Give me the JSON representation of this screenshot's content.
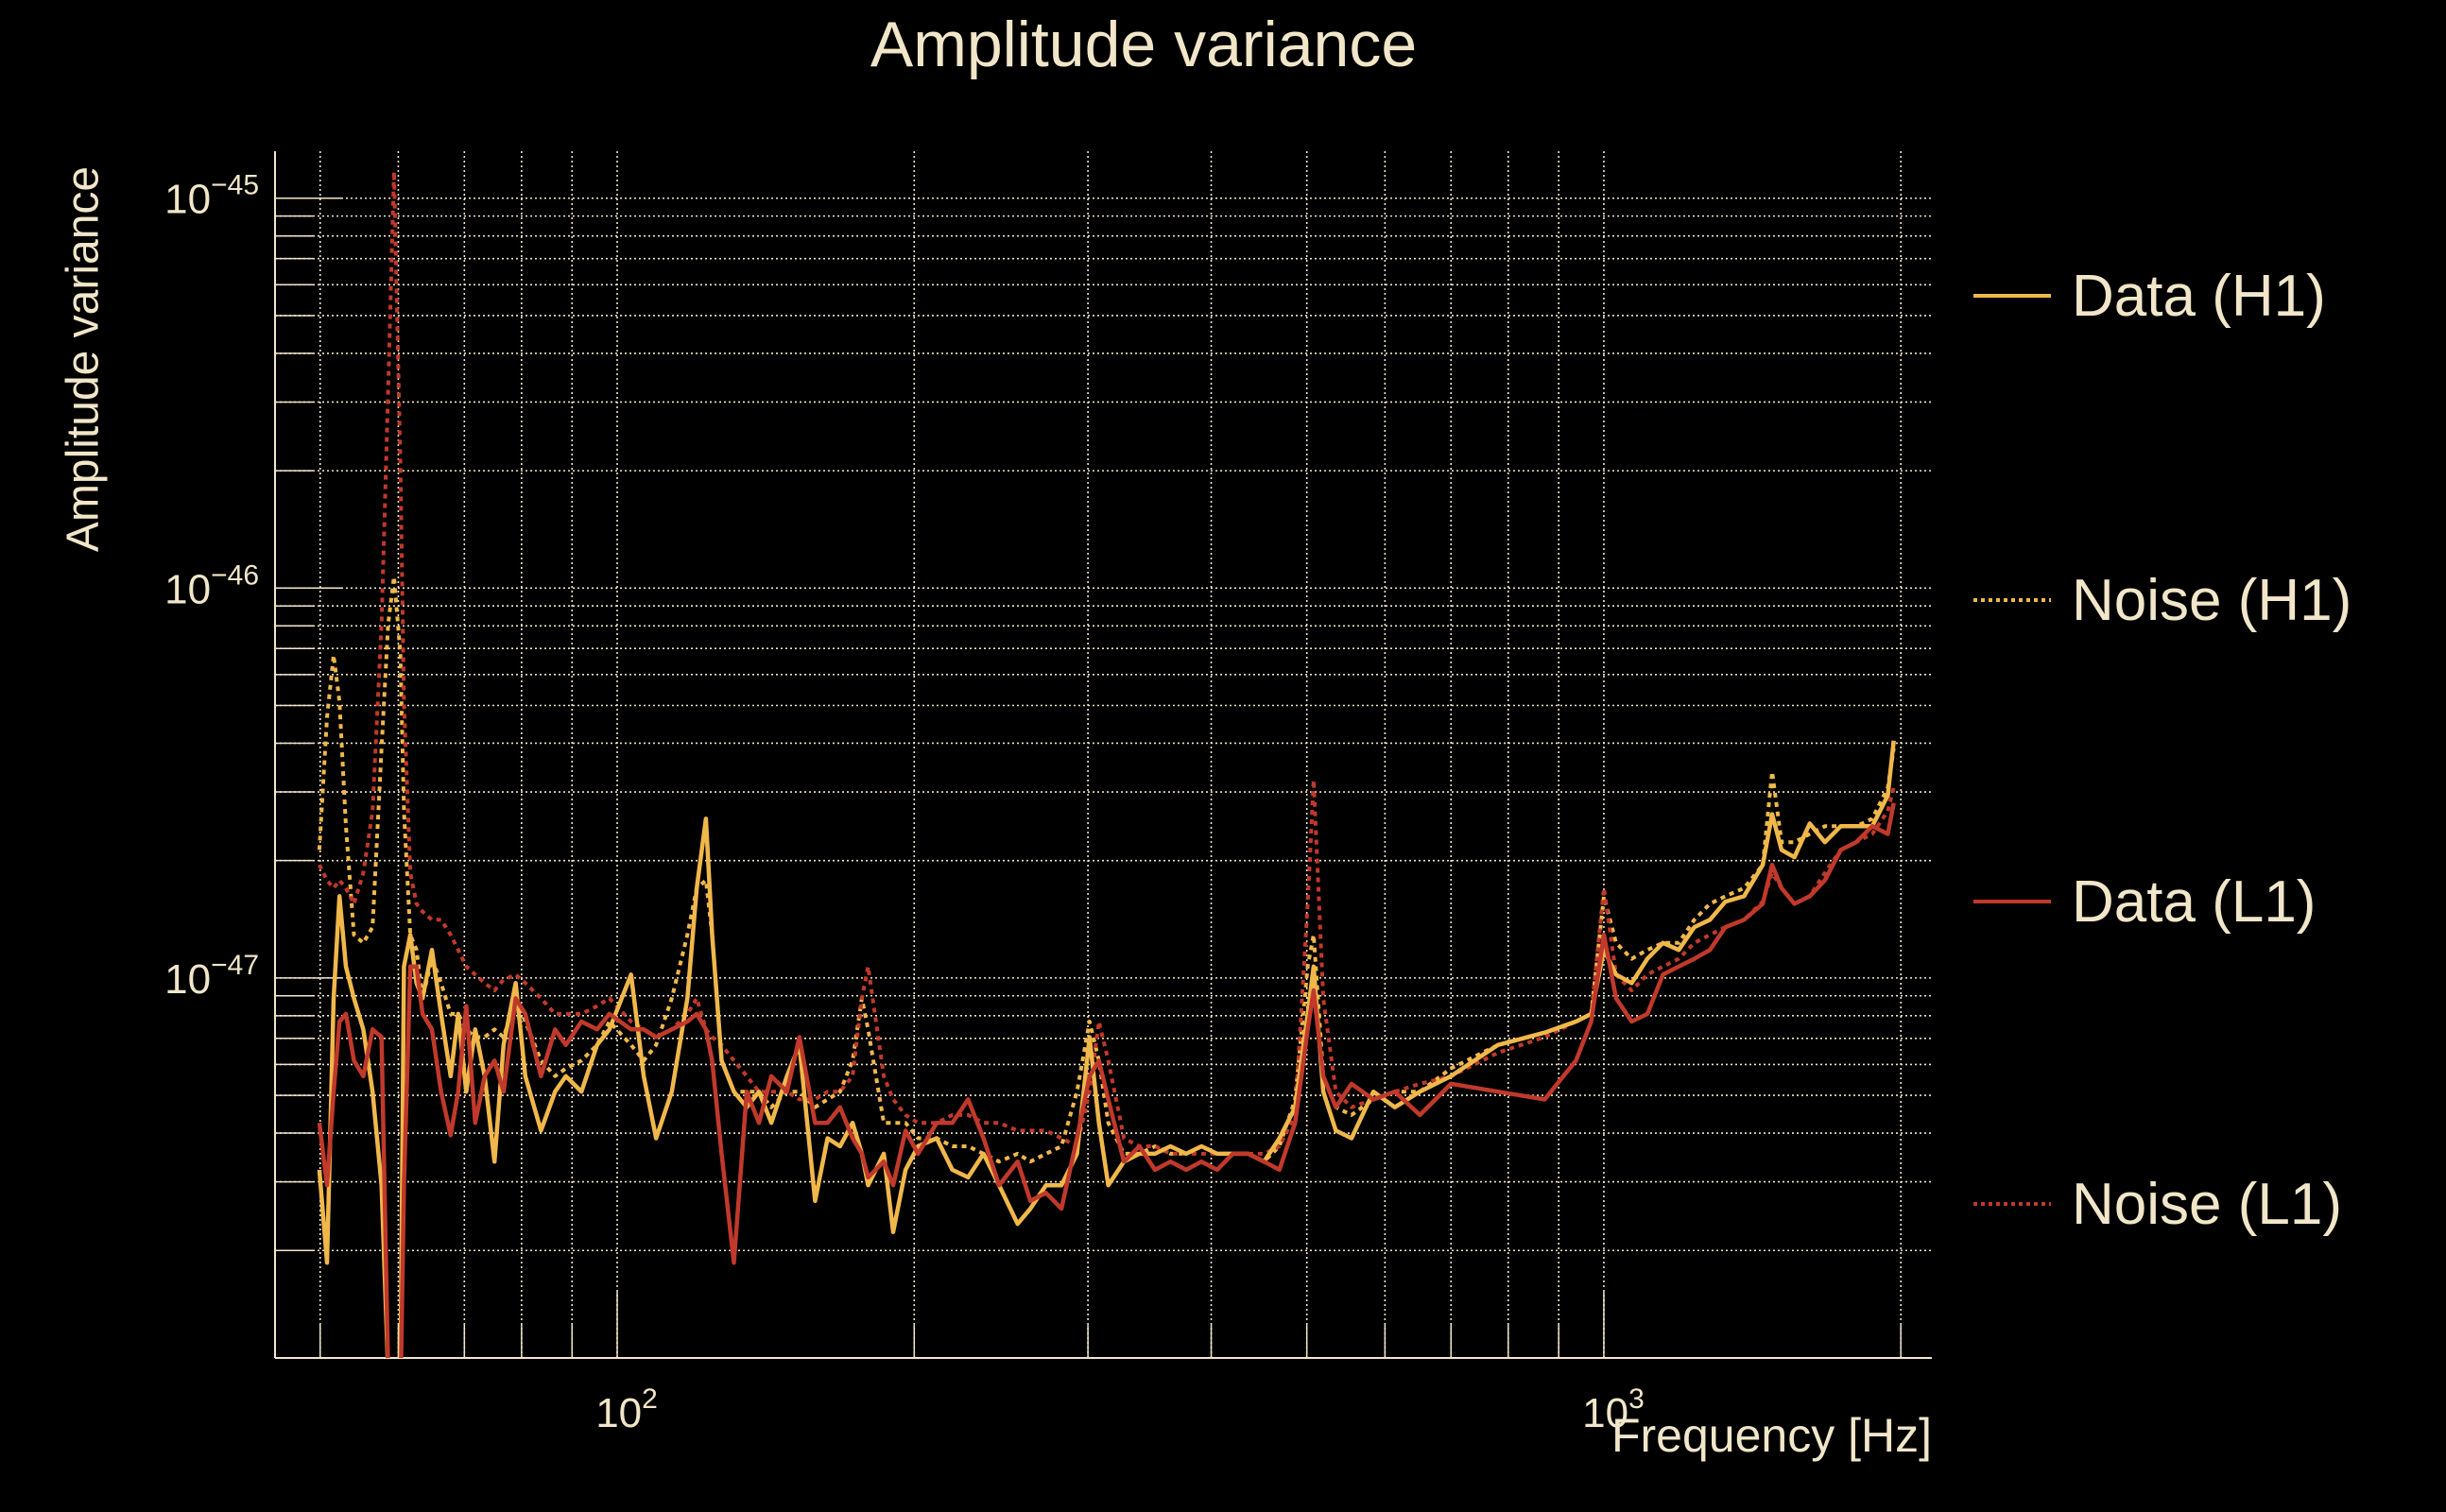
{
  "chart_data": {
    "type": "line",
    "title": "Amplitude variance",
    "xlabel": "Frequency [Hz]",
    "ylabel": "Amplitude variance",
    "xscale": "log",
    "yscale": "log",
    "xlim": [
      45,
      2150
    ],
    "ylim": [
      1.06e-48,
      1.32e-45
    ],
    "grid": true,
    "legend_position": "right",
    "x_ticks": [
      {
        "value": 100,
        "base": "10",
        "exp": "2"
      },
      {
        "value": 1000,
        "base": "10",
        "exp": "3"
      }
    ],
    "y_ticks": [
      {
        "value": 1e-45,
        "base": "10",
        "exp": "−45"
      },
      {
        "value": 1e-46,
        "base": "10",
        "exp": "−46"
      },
      {
        "value": 1e-47,
        "base": "10",
        "exp": "−47"
      }
    ],
    "x": [
      49.9,
      50.8,
      51.6,
      52.3,
      53.1,
      54.1,
      55.3,
      56.5,
      57.7,
      58.6,
      59.4,
      60.3,
      60.8,
      61.7,
      62.6,
      63.5,
      64.9,
      66.3,
      67.8,
      69.0,
      70.3,
      71.8,
      73.4,
      75.1,
      76.7,
      78.9,
      80.7,
      83.7,
      86.5,
      88.7,
      92.0,
      95.4,
      98.2,
      103.3,
      106.4,
      109.5,
      113.6,
      117.8,
      120.4,
      123.0,
      124.8,
      127.6,
      131.3,
      135.3,
      139.2,
      143.3,
      148.6,
      153.0,
      158.7,
      163.4,
      168.2,
      173.2,
      177.0,
      179.6,
      186.3,
      190.4,
      196.0,
      201.8,
      210.8,
      218.6,
      226.8,
      235.1,
      243.8,
      254.6,
      262.3,
      272.0,
      282.0,
      292.4,
      301.1,
      307.8,
      314.6,
      326.3,
      338.3,
      350.8,
      363.7,
      377.3,
      391.0,
      405.6,
      420.7,
      436.0,
      452.5,
      469.0,
      486.5,
      501.0,
      508.0,
      519.6,
      535.0,
      555.0,
      584.0,
      614.0,
      651.0,
      700.0,
      781.0,
      871.0,
      937.0,
      971.0,
      1000,
      1029,
      1067,
      1107,
      1148,
      1191,
      1235,
      1281,
      1328,
      1387,
      1449,
      1481,
      1514,
      1560,
      1617,
      1675,
      1738,
      1802,
      1871,
      1940,
      1967
    ],
    "series": [
      {
        "name": "Data (H1)",
        "color": "#f0b84a",
        "style": "solid",
        "values": [
          3.22e-48,
          1.86e-48,
          8.87e-48,
          1.62e-47,
          1.07e-47,
          8.87e-48,
          7.38e-48,
          5.11e-48,
          2.94e-48,
          9.7e-49,
          8.09e-49,
          9.7e-49,
          1.07e-47,
          1.29e-47,
          9.7e-48,
          8.87e-48,
          1.18e-47,
          8.09e-48,
          5.6e-48,
          8.09e-48,
          5.11e-48,
          7.38e-48,
          5.6e-48,
          3.38e-48,
          6.73e-48,
          9.7e-48,
          5.6e-48,
          4.06e-48,
          5.11e-48,
          5.6e-48,
          5.11e-48,
          6.73e-48,
          7.38e-48,
          1.02e-47,
          5.6e-48,
          3.88e-48,
          5.11e-48,
          8.87e-48,
          1.7e-47,
          2.56e-47,
          1.29e-47,
          6.14e-48,
          5.11e-48,
          4.66e-48,
          5.11e-48,
          4.25e-48,
          5.6e-48,
          6.73e-48,
          2.68e-48,
          3.88e-48,
          3.7e-48,
          4.25e-48,
          3.54e-48,
          2.94e-48,
          3.54e-48,
          2.23e-48,
          3.22e-48,
          3.7e-48,
          3.88e-48,
          3.22e-48,
          3.08e-48,
          3.54e-48,
          2.94e-48,
          2.34e-48,
          2.56e-48,
          2.94e-48,
          2.94e-48,
          3.54e-48,
          7.05e-48,
          4.25e-48,
          2.94e-48,
          3.38e-48,
          3.54e-48,
          3.54e-48,
          3.7e-48,
          3.54e-48,
          3.7e-48,
          3.54e-48,
          3.54e-48,
          3.54e-48,
          3.38e-48,
          3.88e-48,
          4.66e-48,
          8.09e-48,
          1.07e-47,
          5.11e-48,
          4.06e-48,
          3.88e-48,
          5.11e-48,
          4.66e-48,
          5.11e-48,
          5.6e-48,
          6.73e-48,
          7.24e-48,
          7.73e-48,
          8.09e-48,
          1.18e-47,
          1.02e-47,
          9.7e-48,
          1.12e-47,
          1.23e-47,
          1.18e-47,
          1.35e-47,
          1.41e-47,
          1.57e-47,
          1.62e-47,
          1.95e-47,
          2.63e-47,
          2.13e-47,
          2.04e-47,
          2.49e-47,
          2.23e-47,
          2.45e-47,
          2.45e-47,
          2.45e-47,
          2.94e-47,
          4.06e-47
        ]
      },
      {
        "name": "Noise (H1)",
        "color": "#f0b84a",
        "style": "dotted",
        "values": [
          2.13e-47,
          4.66e-47,
          6.73e-47,
          5.11e-47,
          2.45e-47,
          1.29e-47,
          1.23e-47,
          1.35e-47,
          3.88e-47,
          8.09e-47,
          1.07e-46,
          6.73e-47,
          2.68e-47,
          1.29e-47,
          1.18e-47,
          8.87e-48,
          1.12e-47,
          9.7e-48,
          8.09e-48,
          8.09e-48,
          7.38e-48,
          7.05e-48,
          7.05e-48,
          7.38e-48,
          7.05e-48,
          8.87e-48,
          7.73e-48,
          6.14e-48,
          5.6e-48,
          5.86e-48,
          6.14e-48,
          6.73e-48,
          7.73e-48,
          6.73e-48,
          6.14e-48,
          6.73e-48,
          8.87e-48,
          1.29e-47,
          1.7e-47,
          1.78e-47,
          1.29e-47,
          6.14e-48,
          5.11e-48,
          5.11e-48,
          5.11e-48,
          4.66e-48,
          5.11e-48,
          5.11e-48,
          4.66e-48,
          4.88e-48,
          5.11e-48,
          6.14e-48,
          8.87e-48,
          7.38e-48,
          4.25e-48,
          4.25e-48,
          4.25e-48,
          3.88e-48,
          3.88e-48,
          3.7e-48,
          3.7e-48,
          3.54e-48,
          3.38e-48,
          3.54e-48,
          3.38e-48,
          3.54e-48,
          3.7e-48,
          5.11e-48,
          7.73e-48,
          6.14e-48,
          4.25e-48,
          3.54e-48,
          3.54e-48,
          3.7e-48,
          3.54e-48,
          3.54e-48,
          3.7e-48,
          3.54e-48,
          3.54e-48,
          3.54e-48,
          3.38e-48,
          3.7e-48,
          4.88e-48,
          1.07e-47,
          1.29e-47,
          5.6e-48,
          4.66e-48,
          4.45e-48,
          4.88e-48,
          5.11e-48,
          5.11e-48,
          5.86e-48,
          6.73e-48,
          7.24e-48,
          7.73e-48,
          8.09e-48,
          1.62e-47,
          1.23e-47,
          1.12e-47,
          1.18e-47,
          1.23e-47,
          1.23e-47,
          1.41e-47,
          1.55e-47,
          1.62e-47,
          1.7e-47,
          1.95e-47,
          3.38e-47,
          2.23e-47,
          2.23e-47,
          2.34e-47,
          2.45e-47,
          2.45e-47,
          2.45e-47,
          2.56e-47,
          3.08e-47,
          3.88e-47
        ]
      },
      {
        "name": "Data (L1)",
        "color": "#c0392b",
        "style": "solid",
        "values": [
          4.25e-48,
          2.94e-48,
          5.11e-48,
          7.73e-48,
          8.09e-48,
          6.14e-48,
          5.6e-48,
          7.38e-48,
          7.05e-48,
          9.7e-49,
          8.09e-49,
          8.09e-49,
          2.94e-48,
          1.07e-47,
          1.07e-47,
          8.09e-48,
          7.38e-48,
          5.11e-48,
          3.95e-48,
          5.11e-48,
          8.47e-48,
          4.25e-48,
          5.6e-48,
          6.14e-48,
          5.11e-48,
          8.87e-48,
          8.09e-48,
          5.6e-48,
          7.38e-48,
          6.73e-48,
          7.73e-48,
          7.38e-48,
          8.09e-48,
          7.38e-48,
          7.38e-48,
          7.05e-48,
          7.38e-48,
          7.73e-48,
          8.09e-48,
          7.38e-48,
          6.14e-48,
          3.54e-48,
          1.86e-48,
          5.11e-48,
          4.25e-48,
          5.6e-48,
          5.11e-48,
          7.05e-48,
          4.25e-48,
          4.25e-48,
          4.66e-48,
          3.88e-48,
          3.54e-48,
          3.08e-48,
          3.38e-48,
          2.94e-48,
          4.06e-48,
          3.54e-48,
          4.25e-48,
          4.25e-48,
          4.88e-48,
          3.88e-48,
          2.94e-48,
          3.38e-48,
          2.68e-48,
          2.81e-48,
          2.56e-48,
          3.88e-48,
          5.6e-48,
          6.14e-48,
          4.88e-48,
          3.38e-48,
          3.7e-48,
          3.22e-48,
          3.38e-48,
          3.22e-48,
          3.38e-48,
          3.22e-48,
          3.54e-48,
          3.54e-48,
          3.38e-48,
          3.22e-48,
          4.25e-48,
          7.38e-48,
          9.29e-48,
          5.6e-48,
          4.66e-48,
          5.35e-48,
          4.88e-48,
          5.11e-48,
          4.45e-48,
          5.35e-48,
          5.11e-48,
          4.88e-48,
          6.14e-48,
          7.73e-48,
          1.29e-47,
          8.87e-48,
          7.73e-48,
          8.09e-48,
          1.02e-47,
          1.07e-47,
          1.12e-47,
          1.18e-47,
          1.35e-47,
          1.41e-47,
          1.55e-47,
          1.95e-47,
          1.7e-47,
          1.55e-47,
          1.62e-47,
          1.78e-47,
          2.13e-47,
          2.23e-47,
          2.45e-47,
          2.34e-47,
          2.81e-47
        ]
      },
      {
        "name": "Noise (L1)",
        "color": "#c0392b",
        "style": "dotted",
        "values": [
          1.95e-47,
          1.78e-47,
          1.7e-47,
          1.78e-47,
          1.7e-47,
          1.55e-47,
          1.86e-47,
          2.68e-47,
          8.09e-47,
          3.22e-46,
          1.17e-45,
          2.04e-46,
          5.11e-47,
          1.86e-47,
          1.55e-47,
          1.48e-47,
          1.41e-47,
          1.41e-47,
          1.29e-47,
          1.18e-47,
          1.07e-47,
          1.02e-47,
          9.7e-48,
          9.29e-48,
          9.9e-48,
          1.02e-47,
          9.7e-48,
          8.87e-48,
          8.09e-48,
          8.09e-48,
          8.09e-48,
          8.47e-48,
          8.87e-48,
          7.73e-48,
          7.38e-48,
          7.05e-48,
          7.38e-48,
          8.09e-48,
          8.87e-48,
          7.38e-48,
          7.05e-48,
          6.73e-48,
          6.14e-48,
          5.6e-48,
          5.11e-48,
          5.11e-48,
          5.11e-48,
          4.88e-48,
          4.88e-48,
          5.11e-48,
          5.11e-48,
          5.6e-48,
          8.87e-48,
          1.07e-47,
          5.6e-48,
          4.88e-48,
          4.45e-48,
          4.25e-48,
          4.25e-48,
          4.45e-48,
          4.45e-48,
          4.25e-48,
          4.25e-48,
          4.06e-48,
          4.06e-48,
          4.06e-48,
          3.88e-48,
          3.7e-48,
          5.11e-48,
          7.73e-48,
          6.14e-48,
          3.88e-48,
          3.7e-48,
          3.7e-48,
          3.54e-48,
          3.54e-48,
          3.54e-48,
          3.54e-48,
          3.54e-48,
          3.54e-48,
          3.54e-48,
          3.7e-48,
          4.45e-48,
          1.55e-47,
          3.22e-47,
          8.87e-48,
          5.11e-48,
          4.66e-48,
          4.88e-48,
          5.11e-48,
          5.35e-48,
          5.6e-48,
          6.43e-48,
          7.05e-48,
          7.73e-48,
          8.09e-48,
          1.7e-47,
          1.02e-47,
          9.29e-48,
          1.02e-47,
          1.07e-47,
          1.12e-47,
          1.23e-47,
          1.29e-47,
          1.35e-47,
          1.41e-47,
          1.57e-47,
          1.86e-47,
          1.7e-47,
          1.55e-47,
          1.62e-47,
          1.86e-47,
          2.13e-47,
          2.23e-47,
          2.34e-47,
          2.68e-47,
          3.08e-47
        ]
      }
    ]
  },
  "colors": {
    "background": "#000000",
    "text": "#f2e6c9",
    "grid": "#f2e6c9",
    "h1": "#f0b84a",
    "l1": "#c0392b"
  }
}
